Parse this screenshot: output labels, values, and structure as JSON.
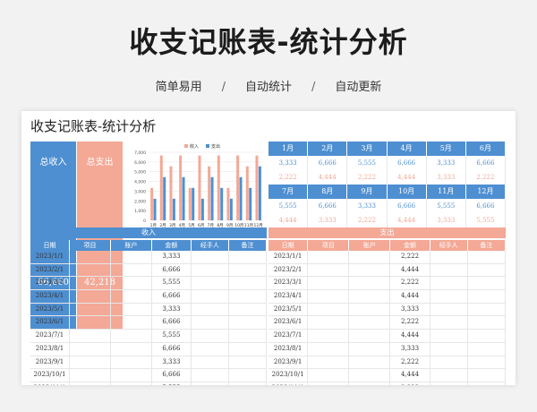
{
  "title": "收支记账表-统计分析",
  "features": [
    "简单易用",
    "自动统计",
    "自动更新"
  ],
  "separator": "/",
  "sheet": {
    "title": "收支记账表-统计分析",
    "total_income_label": "总收入",
    "total_income_value": "66,660",
    "total_expense_label": "总支出",
    "total_expense_value": "42,218",
    "chart_data": {
      "type": "bar",
      "categories": [
        "1月",
        "2月",
        "3月",
        "4月",
        "5月",
        "6月",
        "7月",
        "8月",
        "9月",
        "10月",
        "11月",
        "12月"
      ],
      "series": [
        {
          "name": "收入",
          "values": [
            3333,
            6666,
            5555,
            6666,
            3333,
            6666,
            5555,
            6666,
            3333,
            6666,
            5555,
            6666
          ],
          "color": "#f4a896"
        },
        {
          "name": "支出",
          "values": [
            2222,
            4444,
            2222,
            4444,
            3333,
            2222,
            4444,
            3333,
            2222,
            4444,
            3333,
            5555
          ],
          "color": "#4e8fd1"
        }
      ],
      "ylim": [
        0,
        7000
      ],
      "yticks": [
        "0",
        "1,000",
        "2,000",
        "3,000",
        "4,000",
        "5,000",
        "6,000",
        "7,000"
      ],
      "legend": "top",
      "xlabel": "",
      "ylabel": ""
    },
    "months_top": {
      "labels": [
        "1月",
        "2月",
        "3月",
        "4月",
        "5月",
        "6月"
      ],
      "income": [
        "3,333",
        "6,666",
        "5,555",
        "6,666",
        "3,333",
        "6,666"
      ],
      "expense": [
        "2,222",
        "4,444",
        "2,222",
        "4,444",
        "3,333",
        "2,222"
      ]
    },
    "months_bottom": {
      "labels": [
        "7月",
        "8月",
        "9月",
        "10月",
        "11月",
        "12月"
      ],
      "income": [
        "5,555",
        "6,666",
        "3,333",
        "6,666",
        "5,555",
        "6,666"
      ],
      "expense": [
        "4,444",
        "3,333",
        "2,222",
        "4,444",
        "3,333",
        "5,555"
      ]
    },
    "income_section": "收入",
    "expense_section": "支出",
    "income_columns": [
      "日期",
      "项目",
      "账户",
      "金额",
      "经手人",
      "备注"
    ],
    "expense_columns": [
      "日期",
      "项目",
      "账户",
      "金额",
      "经手人",
      "备注"
    ],
    "income_rows": [
      {
        "date": "2023/1/1",
        "amount": "3,333"
      },
      {
        "date": "2023/2/1",
        "amount": "6,666"
      },
      {
        "date": "2023/3/1",
        "amount": "5,555"
      },
      {
        "date": "2023/4/1",
        "amount": "6,666"
      },
      {
        "date": "2023/5/1",
        "amount": "3,333"
      },
      {
        "date": "2023/6/1",
        "amount": "6,666"
      },
      {
        "date": "2023/7/1",
        "amount": "5,555"
      },
      {
        "date": "2023/8/1",
        "amount": "6,666"
      },
      {
        "date": "2023/9/1",
        "amount": "3,333"
      },
      {
        "date": "2023/10/1",
        "amount": "6,666"
      },
      {
        "date": "2023/11/1",
        "amount": "5,555"
      }
    ],
    "expense_rows": [
      {
        "date": "2023/1/1",
        "amount": "2,222"
      },
      {
        "date": "2023/2/1",
        "amount": "4,444"
      },
      {
        "date": "2023/3/1",
        "amount": "2,222"
      },
      {
        "date": "2023/4/1",
        "amount": "4,444"
      },
      {
        "date": "2023/5/1",
        "amount": "3,333"
      },
      {
        "date": "2023/6/1",
        "amount": "2,222"
      },
      {
        "date": "2023/7/1",
        "amount": "4,444"
      },
      {
        "date": "2023/8/1",
        "amount": "3,333"
      },
      {
        "date": "2023/9/1",
        "amount": "2,222"
      },
      {
        "date": "2023/10/1",
        "amount": "4,444"
      },
      {
        "date": "2023/11/1",
        "amount": "3,333"
      }
    ]
  }
}
